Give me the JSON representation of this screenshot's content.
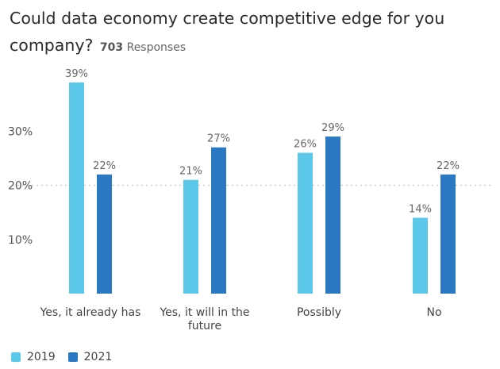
{
  "chart": {
    "title": "Could data economy create competitive edge for you company?",
    "responses_count": "703",
    "responses_label": "Responses"
  },
  "colors": {
    "2019": "#5bc8ea",
    "2021": "#2a78c2",
    "grid": "#cfcfcf",
    "axis_text": "#555555"
  },
  "chart_data": {
    "type": "bar",
    "title": "Could data economy create competitive edge for you company?",
    "categories": [
      "Yes, it already has",
      "Yes, it will in the future",
      "Possibly",
      "No"
    ],
    "series": [
      {
        "name": "2019",
        "values": [
          39,
          21,
          26,
          14
        ]
      },
      {
        "name": "2021",
        "values": [
          22,
          27,
          29,
          22
        ]
      }
    ],
    "ylim": [
      0,
      40
    ],
    "yticks": [
      "10%",
      "20%",
      "30%"
    ],
    "data_labels": [
      [
        "39%",
        "21%",
        "26%",
        "14%"
      ],
      [
        "22%",
        "27%",
        "29%",
        "22%"
      ]
    ],
    "grid": "dotted at 20%",
    "legend": "bottom-left"
  }
}
